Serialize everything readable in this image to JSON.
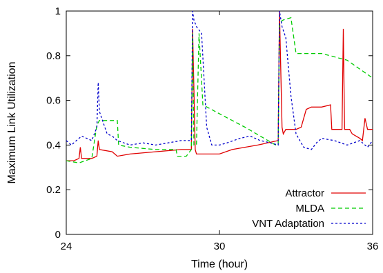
{
  "chart_data": {
    "type": "line",
    "xlabel": "Time (hour)",
    "ylabel": "Maximum Link Utilization",
    "xlim": [
      24,
      36
    ],
    "ylim": [
      0,
      1
    ],
    "x_ticks": [
      24,
      30,
      36
    ],
    "y_ticks": [
      0,
      0.2,
      0.4,
      0.6,
      0.8,
      1
    ],
    "x_tick_labels": [
      "24",
      "30",
      "36"
    ],
    "y_tick_labels": [
      "0",
      "0.2",
      "0.4",
      "0.6",
      "0.8",
      "1"
    ],
    "grid": false,
    "legend_position": "bottom-right",
    "series": [
      {
        "name": "Attractor",
        "color": "#e00000",
        "dash": "solid",
        "points": [
          [
            24,
            0.33
          ],
          [
            24.3,
            0.33
          ],
          [
            24.5,
            0.34
          ],
          [
            24.55,
            0.39
          ],
          [
            24.6,
            0.34
          ],
          [
            25.0,
            0.34
          ],
          [
            25.2,
            0.35
          ],
          [
            25.25,
            0.42
          ],
          [
            25.3,
            0.38
          ],
          [
            25.8,
            0.37
          ],
          [
            26.0,
            0.35
          ],
          [
            26.5,
            0.36
          ],
          [
            27.5,
            0.37
          ],
          [
            28.5,
            0.38
          ],
          [
            28.9,
            0.38
          ],
          [
            28.95,
            0.92
          ],
          [
            29.05,
            0.38
          ],
          [
            29.1,
            0.36
          ],
          [
            30.0,
            0.36
          ],
          [
            30.5,
            0.38
          ],
          [
            31.0,
            0.39
          ],
          [
            31.5,
            0.4
          ],
          [
            32.3,
            0.42
          ],
          [
            32.35,
            1.0
          ],
          [
            32.45,
            0.48
          ],
          [
            32.5,
            0.45
          ],
          [
            32.6,
            0.47
          ],
          [
            33.0,
            0.47
          ],
          [
            33.2,
            0.48
          ],
          [
            33.4,
            0.56
          ],
          [
            33.6,
            0.57
          ],
          [
            34.0,
            0.57
          ],
          [
            34.35,
            0.58
          ],
          [
            34.4,
            0.47
          ],
          [
            34.8,
            0.47
          ],
          [
            34.85,
            0.92
          ],
          [
            34.9,
            0.47
          ],
          [
            35.1,
            0.47
          ],
          [
            35.2,
            0.45
          ],
          [
            35.5,
            0.43
          ],
          [
            35.6,
            0.42
          ],
          [
            35.7,
            0.52
          ],
          [
            35.8,
            0.47
          ],
          [
            36.0,
            0.47
          ]
        ]
      },
      {
        "name": "MLDA",
        "color": "#00cc00",
        "dash": "6,4",
        "points": [
          [
            24,
            0.33
          ],
          [
            24.5,
            0.32
          ],
          [
            25.0,
            0.34
          ],
          [
            25.2,
            0.49
          ],
          [
            25.3,
            0.51
          ],
          [
            26.0,
            0.51
          ],
          [
            26.05,
            0.4
          ],
          [
            26.5,
            0.39
          ],
          [
            27.5,
            0.38
          ],
          [
            28.3,
            0.38
          ],
          [
            28.35,
            0.35
          ],
          [
            28.7,
            0.35
          ],
          [
            28.9,
            0.38
          ],
          [
            28.95,
            0.9
          ],
          [
            29.0,
            0.4
          ],
          [
            29.1,
            0.4
          ],
          [
            29.2,
            0.9
          ],
          [
            29.35,
            0.58
          ],
          [
            30.0,
            0.54
          ],
          [
            31.0,
            0.48
          ],
          [
            31.6,
            0.44
          ],
          [
            32.2,
            0.4
          ],
          [
            32.3,
            0.4
          ],
          [
            32.35,
            0.95
          ],
          [
            32.5,
            0.96
          ],
          [
            32.8,
            0.97
          ],
          [
            33.0,
            0.81
          ],
          [
            34.0,
            0.81
          ],
          [
            35.0,
            0.78
          ],
          [
            36.0,
            0.7
          ]
        ]
      },
      {
        "name": "VNT Adaptation",
        "color": "#0000cc",
        "dash": "3,3",
        "points": [
          [
            24,
            0.42
          ],
          [
            24.2,
            0.4
          ],
          [
            24.4,
            0.42
          ],
          [
            24.6,
            0.44
          ],
          [
            25.0,
            0.42
          ],
          [
            25.2,
            0.48
          ],
          [
            25.25,
            0.68
          ],
          [
            25.3,
            0.55
          ],
          [
            25.6,
            0.45
          ],
          [
            25.8,
            0.44
          ],
          [
            26.0,
            0.42
          ],
          [
            26.5,
            0.4
          ],
          [
            27.0,
            0.41
          ],
          [
            27.5,
            0.4
          ],
          [
            28.0,
            0.41
          ],
          [
            28.5,
            0.42
          ],
          [
            28.9,
            0.42
          ],
          [
            28.95,
            1.0
          ],
          [
            29.0,
            0.96
          ],
          [
            29.1,
            0.93
          ],
          [
            29.3,
            0.9
          ],
          [
            29.5,
            0.48
          ],
          [
            29.7,
            0.4
          ],
          [
            30.0,
            0.4
          ],
          [
            30.3,
            0.41
          ],
          [
            30.8,
            0.43
          ],
          [
            31.2,
            0.44
          ],
          [
            31.6,
            0.42
          ],
          [
            32.0,
            0.41
          ],
          [
            32.3,
            0.4
          ],
          [
            32.35,
            1.0
          ],
          [
            32.45,
            0.93
          ],
          [
            32.6,
            0.88
          ],
          [
            32.8,
            0.62
          ],
          [
            33.0,
            0.45
          ],
          [
            33.3,
            0.39
          ],
          [
            33.6,
            0.38
          ],
          [
            33.8,
            0.41
          ],
          [
            34.0,
            0.43
          ],
          [
            34.5,
            0.42
          ],
          [
            35.0,
            0.4
          ],
          [
            35.5,
            0.42
          ],
          [
            35.8,
            0.39
          ],
          [
            36.0,
            0.42
          ]
        ]
      }
    ]
  }
}
